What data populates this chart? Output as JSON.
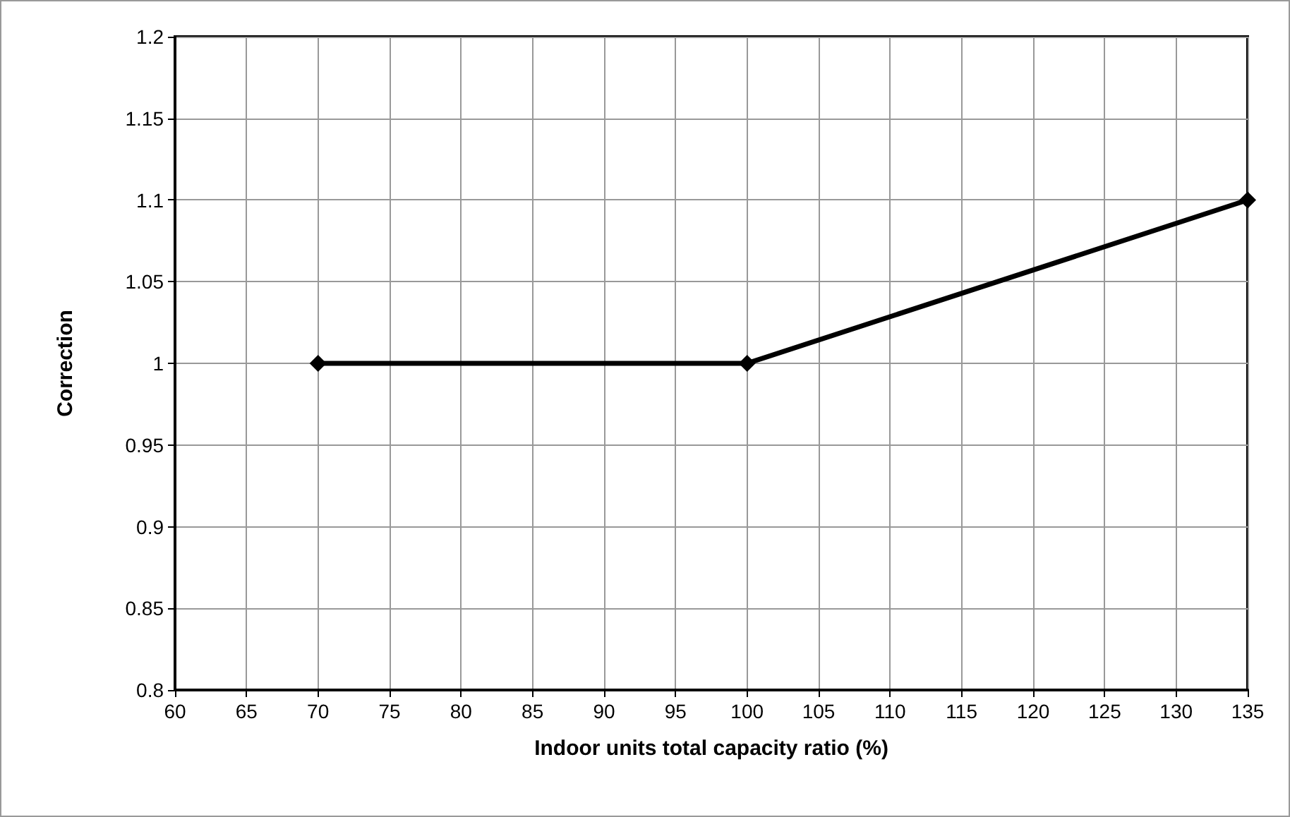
{
  "chart_data": {
    "type": "line",
    "xlabel": "Indoor units total capacity ratio (%)",
    "ylabel": "Correction",
    "x": [
      70,
      100,
      135
    ],
    "series": [
      {
        "color": "#000000",
        "values": [
          1,
          1,
          1.1
        ]
      }
    ],
    "xlim": [
      60,
      135
    ],
    "xticks": [
      60,
      65,
      70,
      75,
      80,
      85,
      90,
      95,
      100,
      105,
      110,
      115,
      120,
      125,
      130,
      135
    ],
    "ylim": [
      0.8,
      1.2
    ],
    "yticks": [
      0.8,
      0.85,
      0.9,
      0.95,
      1,
      1.05,
      1.1,
      1.15,
      1.2
    ],
    "grid": true,
    "marker": "diamond",
    "line_style": "solid"
  }
}
